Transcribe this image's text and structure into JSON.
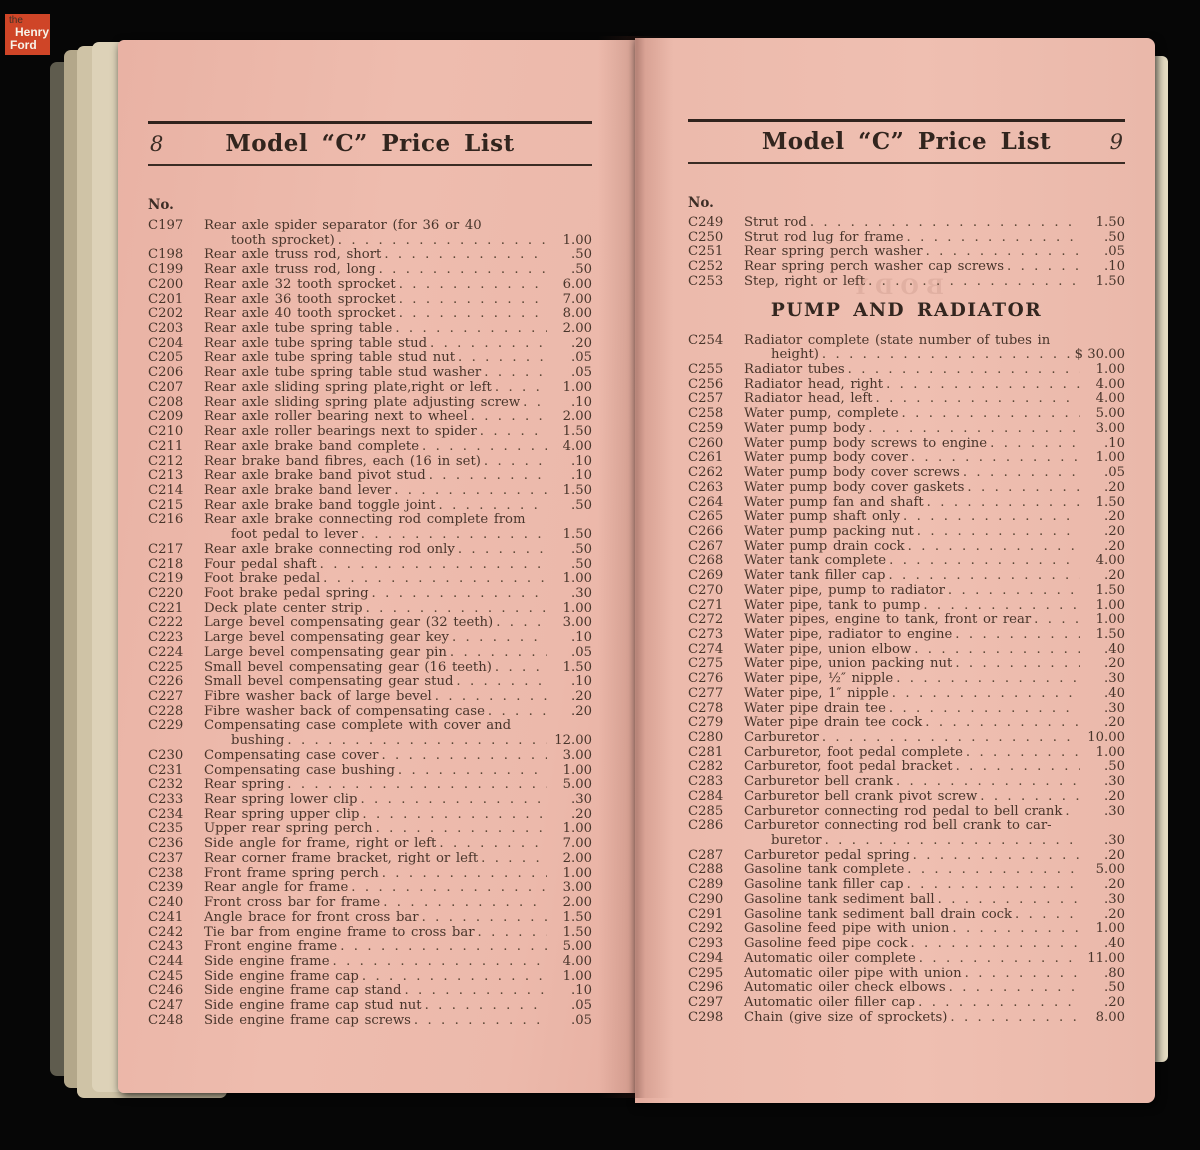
{
  "logo": {
    "the": "the",
    "henry": "Henry",
    "ford": "Ford",
    "bg_color": "#cf4527"
  },
  "left_page": {
    "page_number": "8",
    "title": "Model “C” Price List",
    "no_label": "No.",
    "items": [
      {
        "n": "C197",
        "d": "Rear axle spider separator (for 36 or 40",
        "d2": "tooth sprocket)",
        "p": "1.00"
      },
      {
        "n": "C198",
        "d": "Rear axle truss rod, short",
        "p": ".50"
      },
      {
        "n": "C199",
        "d": "Rear axle truss rod, long",
        "p": ".50"
      },
      {
        "n": "C200",
        "d": "Rear axle 32 tooth sprocket",
        "p": "6.00"
      },
      {
        "n": "C201",
        "d": "Rear axle 36 tooth sprocket",
        "p": "7.00"
      },
      {
        "n": "C202",
        "d": "Rear axle 40 tooth sprocket",
        "p": "8.00"
      },
      {
        "n": "C203",
        "d": "Rear axle tube spring table",
        "p": "2.00"
      },
      {
        "n": "C204",
        "d": "Rear axle tube spring table stud",
        "p": ".20"
      },
      {
        "n": "C205",
        "d": "Rear axle tube spring table stud nut",
        "p": ".05"
      },
      {
        "n": "C206",
        "d": "Rear axle tube spring table stud washer",
        "p": ".05"
      },
      {
        "n": "C207",
        "d": "Rear axle sliding spring plate,right or left",
        "p": "1.00"
      },
      {
        "n": "C208",
        "d": "Rear axle sliding spring plate adjusting screw",
        "p": ".10"
      },
      {
        "n": "C209",
        "d": "Rear axle roller bearing next to wheel",
        "p": "2.00"
      },
      {
        "n": "C210",
        "d": "Rear axle roller bearings next to spider",
        "p": "1.50"
      },
      {
        "n": "C211",
        "d": "Rear axle brake band complete",
        "p": "4.00"
      },
      {
        "n": "C212",
        "d": "Rear brake band fibres, each (16 in set)",
        "p": ".10"
      },
      {
        "n": "C213",
        "d": "Rear axle brake band pivot stud",
        "p": ".10"
      },
      {
        "n": "C214",
        "d": "Rear axle brake band lever",
        "p": "1.50"
      },
      {
        "n": "C215",
        "d": "Rear axle brake band toggle joint",
        "p": ".50"
      },
      {
        "n": "C216",
        "d": "Rear axle brake connecting rod complete from",
        "d2": "foot pedal to lever",
        "p": "1.50"
      },
      {
        "n": "C217",
        "d": "Rear axle brake connecting rod only",
        "p": ".50"
      },
      {
        "n": "C218",
        "d": "Four pedal shaft",
        "p": ".50"
      },
      {
        "n": "C219",
        "d": "Foot brake pedal",
        "p": "1.00"
      },
      {
        "n": "C220",
        "d": "Foot brake pedal spring",
        "p": ".30"
      },
      {
        "n": "C221",
        "d": "Deck plate center strip",
        "p": "1.00"
      },
      {
        "n": "C222",
        "d": "Large bevel compensating gear (32 teeth)",
        "p": "3.00"
      },
      {
        "n": "C223",
        "d": "Large bevel compensating gear key",
        "p": ".10"
      },
      {
        "n": "C224",
        "d": "Large bevel compensating gear pin",
        "p": ".05"
      },
      {
        "n": "C225",
        "d": "Small bevel compensating gear (16 teeth)",
        "p": "1.50"
      },
      {
        "n": "C226",
        "d": "Small bevel compensating gear stud",
        "p": ".10"
      },
      {
        "n": "C227",
        "d": "Fibre washer back of large bevel",
        "p": ".20"
      },
      {
        "n": "C228",
        "d": "Fibre washer back of compensating case",
        "p": ".20"
      },
      {
        "n": "C229",
        "d": "Compensating case complete with cover and",
        "d2": "bushing",
        "p": "12.00"
      },
      {
        "n": "C230",
        "d": "Compensating case cover",
        "p": "3.00"
      },
      {
        "n": "C231",
        "d": "Compensating case bushing",
        "p": "1.00"
      },
      {
        "n": "C232",
        "d": "Rear spring",
        "p": "5.00"
      },
      {
        "n": "C233",
        "d": "Rear spring lower clip",
        "p": ".30"
      },
      {
        "n": "C234",
        "d": "Rear spring upper clip",
        "p": ".20"
      },
      {
        "n": "C235",
        "d": "Upper rear spring perch",
        "p": "1.00"
      },
      {
        "n": "C236",
        "d": "Side angle for frame, right or left",
        "p": "7.00"
      },
      {
        "n": "C237",
        "d": "Rear corner frame bracket, right or left",
        "p": "2.00"
      },
      {
        "n": "C238",
        "d": "Front frame spring perch",
        "p": "1.00"
      },
      {
        "n": "C239",
        "d": "Rear angle for frame",
        "p": "3.00"
      },
      {
        "n": "C240",
        "d": "Front cross bar for frame",
        "p": "2.00"
      },
      {
        "n": "C241",
        "d": "Angle brace for front cross bar",
        "p": "1.50"
      },
      {
        "n": "C242",
        "d": "Tie bar from engine frame to cross bar",
        "p": "1.50"
      },
      {
        "n": "C243",
        "d": "Front engine frame",
        "p": "5.00"
      },
      {
        "n": "C244",
        "d": "Side engine frame",
        "p": "4.00"
      },
      {
        "n": "C245",
        "d": "Side engine frame cap",
        "p": "1.00"
      },
      {
        "n": "C246",
        "d": "Side engine frame cap stand",
        "p": ".10"
      },
      {
        "n": "C247",
        "d": "Side engine frame cap stud nut",
        "p": ".05"
      },
      {
        "n": "C248",
        "d": "Side engine frame cap screws",
        "p": ".05"
      }
    ]
  },
  "right_page": {
    "page_number": "9",
    "title": "Model “C” Price List",
    "no_label": "No.",
    "ghost_text": "BODY",
    "items_top": [
      {
        "n": "C249",
        "d": "Strut rod",
        "p": "1.50"
      },
      {
        "n": "C250",
        "d": "Strut rod lug for frame",
        "p": ".50"
      },
      {
        "n": "C251",
        "d": "Rear spring perch washer",
        "p": ".05"
      },
      {
        "n": "C252",
        "d": "Rear spring perch washer cap screws",
        "p": ".10"
      },
      {
        "n": "C253",
        "d": "Step, right or left",
        "p": "1.50"
      }
    ],
    "section_heading": "PUMP AND RADIATOR",
    "items": [
      {
        "n": "C254",
        "d": "Radiator complete (state number of tubes in",
        "d2": "height)",
        "p": "30.00",
        "c": "$"
      },
      {
        "n": "C255",
        "d": "Radiator tubes",
        "p": "1.00"
      },
      {
        "n": "C256",
        "d": "Radiator head, right",
        "p": "4.00"
      },
      {
        "n": "C257",
        "d": "Radiator head, left",
        "p": "4.00"
      },
      {
        "n": "C258",
        "d": "Water pump, complete",
        "p": "5.00"
      },
      {
        "n": "C259",
        "d": "Water pump body",
        "p": "3.00"
      },
      {
        "n": "C260",
        "d": "Water pump body screws to engine",
        "p": ".10"
      },
      {
        "n": "C261",
        "d": "Water pump body cover",
        "p": "1.00"
      },
      {
        "n": "C262",
        "d": "Water pump body cover screws",
        "p": ".05"
      },
      {
        "n": "C263",
        "d": "Water pump body cover gaskets",
        "p": ".20"
      },
      {
        "n": "C264",
        "d": "Water pump fan and shaft",
        "p": "1.50"
      },
      {
        "n": "C265",
        "d": "Water pump shaft only",
        "p": ".20"
      },
      {
        "n": "C266",
        "d": "Water pump packing nut",
        "p": ".20"
      },
      {
        "n": "C267",
        "d": "Water pump drain cock",
        "p": ".20"
      },
      {
        "n": "C268",
        "d": "Water tank complete",
        "p": "4.00"
      },
      {
        "n": "C269",
        "d": "Water tank filler cap",
        "p": ".20"
      },
      {
        "n": "C270",
        "d": "Water pipe, pump to radiator",
        "p": "1.50"
      },
      {
        "n": "C271",
        "d": "Water pipe, tank to pump",
        "p": "1.00"
      },
      {
        "n": "C272",
        "d": "Water pipes, engine to tank, front or rear",
        "p": "1.00"
      },
      {
        "n": "C273",
        "d": "Water pipe, radiator to engine",
        "p": "1.50"
      },
      {
        "n": "C274",
        "d": "Water pipe, union elbow",
        "p": ".40"
      },
      {
        "n": "C275",
        "d": "Water pipe, union packing nut",
        "p": ".20"
      },
      {
        "n": "C276",
        "d": "Water pipe, ½″ nipple",
        "p": ".30"
      },
      {
        "n": "C277",
        "d": "Water pipe, 1″ nipple",
        "p": ".40"
      },
      {
        "n": "C278",
        "d": "Water pipe drain tee",
        "p": ".30"
      },
      {
        "n": "C279",
        "d": "Water pipe drain tee cock",
        "p": ".20"
      },
      {
        "n": "C280",
        "d": "Carburetor",
        "p": "10.00"
      },
      {
        "n": "C281",
        "d": "Carburetor, foot pedal complete",
        "p": "1.00"
      },
      {
        "n": "C282",
        "d": "Carburetor, foot pedal bracket",
        "p": ".50"
      },
      {
        "n": "C283",
        "d": "Carburetor bell crank",
        "p": ".30"
      },
      {
        "n": "C284",
        "d": "Carburetor bell crank pivot screw",
        "p": ".20"
      },
      {
        "n": "C285",
        "d": "Carburetor connecting rod pedal to bell crank",
        "p": ".30"
      },
      {
        "n": "C286",
        "d": "Carburetor connecting rod bell crank to car-",
        "d2": "buretor",
        "p": ".30"
      },
      {
        "n": "C287",
        "d": "Carburetor pedal spring",
        "p": ".20"
      },
      {
        "n": "C288",
        "d": "Gasoline tank complete",
        "p": "5.00"
      },
      {
        "n": "C289",
        "d": "Gasoline tank filler cap",
        "p": ".20"
      },
      {
        "n": "C290",
        "d": "Gasoline tank sediment ball",
        "p": ".30"
      },
      {
        "n": "C291",
        "d": "Gasoline tank sediment ball drain cock",
        "p": ".20"
      },
      {
        "n": "C292",
        "d": "Gasoline feed pipe with union",
        "p": "1.00"
      },
      {
        "n": "C293",
        "d": "Gasoline feed pipe cock",
        "p": ".40"
      },
      {
        "n": "C294",
        "d": "Automatic oiler complete",
        "p": "11.00"
      },
      {
        "n": "C295",
        "d": "Automatic oiler pipe with union",
        "p": ".80"
      },
      {
        "n": "C296",
        "d": "Automatic oiler check elbows",
        "p": ".50"
      },
      {
        "n": "C297",
        "d": "Automatic oiler filler cap",
        "p": ".20"
      },
      {
        "n": "C298",
        "d": "Chain (give size of sprockets)",
        "p": "8.00"
      }
    ]
  }
}
